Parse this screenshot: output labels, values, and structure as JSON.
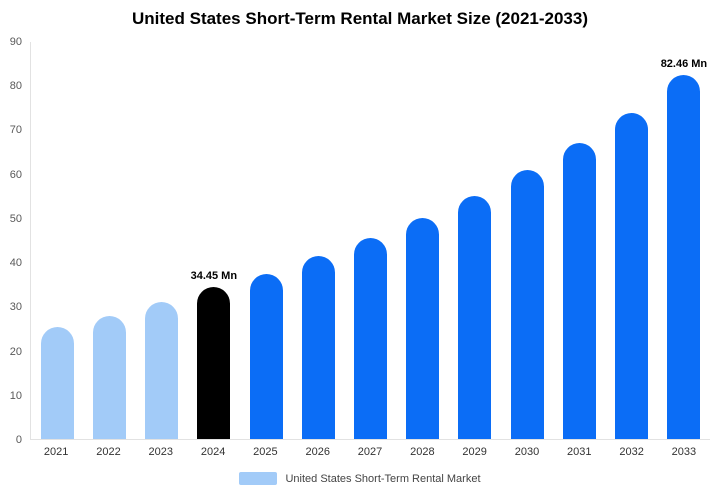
{
  "legend": {
    "label": "United States Short-Term Rental Market",
    "swatch_color": "#a2cbf8"
  },
  "colors": {
    "light_blue": "#a2cbf8",
    "highlight_black": "#000000",
    "primary_blue": "#0b6df6"
  },
  "chart_data": {
    "type": "bar",
    "title": "United States Short-Term Rental Market Size (2021-2033)",
    "categories": [
      "2021",
      "2022",
      "2023",
      "2024",
      "2025",
      "2026",
      "2027",
      "2028",
      "2029",
      "2030",
      "2031",
      "2032",
      "2033"
    ],
    "values": [
      25.5,
      28,
      31,
      34.45,
      37.5,
      41.5,
      45.5,
      50,
      55,
      61,
      67,
      74,
      82.46
    ],
    "bar_colors": [
      "#a2cbf8",
      "#a2cbf8",
      "#a2cbf8",
      "#000000",
      "#0b6df6",
      "#0b6df6",
      "#0b6df6",
      "#0b6df6",
      "#0b6df6",
      "#0b6df6",
      "#0b6df6",
      "#0b6df6",
      "#0b6df6"
    ],
    "data_labels": {
      "2024": "34.45 Mn",
      "2033": "82.46 Mn"
    },
    "xlabel": "",
    "ylabel": "",
    "ylim": [
      0,
      90
    ],
    "ytick_step": 10,
    "yticks": [
      0,
      10,
      20,
      30,
      40,
      50,
      60,
      70,
      80,
      90
    ],
    "grid": false,
    "legend_position": "bottom"
  }
}
